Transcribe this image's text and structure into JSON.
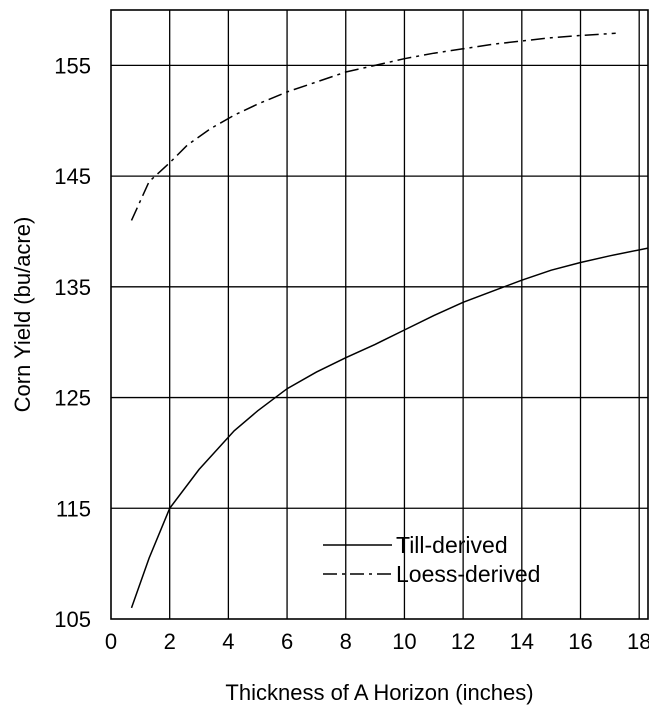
{
  "chart_data": {
    "type": "line",
    "title": "",
    "xlabel": "Thickness of A Horizon (inches)",
    "ylabel": "Corn Yield (bu/acre)",
    "xlim": [
      0,
      18.3
    ],
    "ylim": [
      105,
      160
    ],
    "xticks": [
      0,
      2,
      4,
      6,
      8,
      10,
      12,
      14,
      16,
      18
    ],
    "yticks": [
      105,
      115,
      125,
      135,
      145,
      155
    ],
    "grid": true,
    "legend_position": "lower-right",
    "series": [
      {
        "name": "Till-derived",
        "style": "solid",
        "x": [
          0.7,
          1.3,
          2.0,
          3.0,
          4.2,
          5.0,
          6.0,
          7.0,
          8.0,
          9.0,
          10.0,
          11.0,
          12.0,
          13.0,
          14.0,
          15.0,
          16.0,
          17.0,
          18.3
        ],
        "y": [
          106.0,
          110.5,
          115.0,
          118.5,
          122.0,
          123.8,
          125.8,
          127.3,
          128.6,
          129.8,
          131.1,
          132.4,
          133.6,
          134.6,
          135.6,
          136.5,
          137.2,
          137.8,
          138.5
        ]
      },
      {
        "name": "Loess-derived",
        "style": "dashdot",
        "x": [
          0.7,
          1.3,
          2.0,
          2.6,
          3.4,
          4.2,
          5.0,
          6.0,
          7.0,
          8.0,
          9.0,
          10.0,
          11.0,
          12.0,
          13.0,
          14.0,
          15.0,
          16.0,
          17.2
        ],
        "y": [
          141.0,
          144.5,
          146.2,
          147.8,
          149.3,
          150.5,
          151.5,
          152.6,
          153.5,
          154.4,
          155.0,
          155.6,
          156.1,
          156.5,
          156.9,
          157.2,
          157.5,
          157.7,
          157.9
        ]
      }
    ]
  }
}
